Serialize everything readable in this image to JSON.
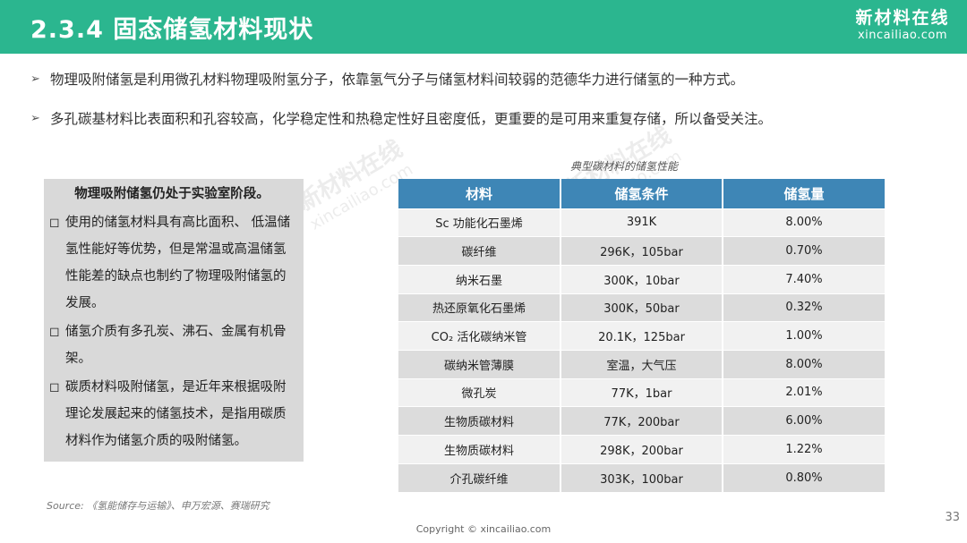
{
  "header": {
    "title": "2.3.4 固态储氢材料现状",
    "logo_cn": "新材料在线",
    "logo_en": "xincailiao.com"
  },
  "bullets": [
    "物理吸附储氢是利用微孔材料物理吸附氢分子，依靠氢气分子与储氢材料间较弱的范德华力进行储氢的一种方式。",
    "多孔碳基材料比表面积和孔容较高，化学稳定性和热稳定性好且密度低，更重要的是可用来重复存储，所以备受关注。"
  ],
  "note_box": {
    "heading": "物理吸附储氢仍处于实验室阶段。",
    "items": [
      "使用的储氢材料具有高比面积、 低温储氢性能好等优势，但是常温或高温储氢性能差的缺点也制约了物理吸附储氢的发展。",
      "储氢介质有多孔炭、沸石、金属有机骨架。",
      "碳质材料吸附储氢，是近年来根据吸附理论发展起来的储氢技术，是指用碳质材料作为储氢介质的吸附储氢。"
    ]
  },
  "table": {
    "caption": "典型碳材料的储氢性能",
    "headers": [
      "材料",
      "储氢条件",
      "储氢量"
    ],
    "rows": [
      [
        "Sc 功能化石墨烯",
        "391K",
        "8.00%"
      ],
      [
        "碳纤维",
        "296K，105bar",
        "0.70%"
      ],
      [
        "纳米石墨",
        "300K，10bar",
        "7.40%"
      ],
      [
        "热还原氧化石墨烯",
        "300K，50bar",
        "0.32%"
      ],
      [
        "CO₂ 活化碳纳米管",
        "20.1K，125bar",
        "1.00%"
      ],
      [
        "碳纳米管薄膜",
        "室温，大气压",
        "8.00%"
      ],
      [
        "微孔炭",
        "77K，1bar",
        "2.01%"
      ],
      [
        "生物质碳材料",
        "77K，200bar",
        "6.00%"
      ],
      [
        "生物质碳材料",
        "298K，200bar",
        "1.22%"
      ],
      [
        "介孔碳纤维",
        "303K，100bar",
        "0.80%"
      ]
    ]
  },
  "watermark": {
    "cn": "新材料在线",
    "en": "xincailiao.com"
  },
  "footer": {
    "source": "Source: 《氢能储存与运输》、申万宏源、赛瑞研究",
    "copyright": "Copyright © xincailiao.com",
    "page_number": "33"
  },
  "colors": {
    "header_bg": "#2bb68f",
    "table_header_bg": "#3e86b6",
    "note_bg": "#d9d9d9"
  }
}
